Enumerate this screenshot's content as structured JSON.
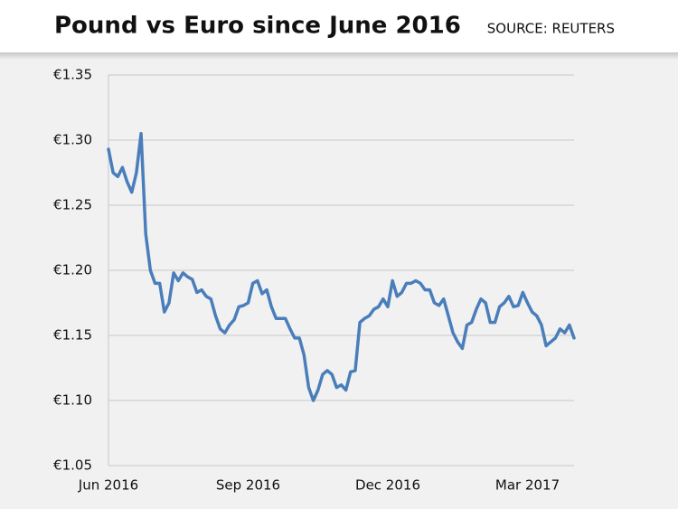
{
  "chart_data": {
    "type": "line",
    "title": "Pound vs Euro since June 2016",
    "source": "SOURCE: REUTERS",
    "categories": [
      "Jun 2016",
      null,
      null,
      null,
      null,
      null,
      null,
      null,
      null,
      null,
      null,
      null,
      null,
      null,
      null,
      null,
      null,
      null,
      null,
      null,
      null,
      null,
      null,
      null,
      null,
      null,
      null,
      null,
      null,
      null,
      "Sep 2016",
      null,
      null,
      null,
      null,
      null,
      null,
      null,
      null,
      null,
      null,
      null,
      null,
      null,
      null,
      null,
      null,
      null,
      null,
      null,
      null,
      null,
      null,
      null,
      null,
      null,
      null,
      null,
      null,
      null,
      "Dec 2016",
      null,
      null,
      null,
      null,
      null,
      null,
      null,
      null,
      null,
      null,
      null,
      null,
      null,
      null,
      null,
      null,
      null,
      null,
      null,
      null,
      null,
      null,
      null,
      null,
      null,
      null,
      null,
      null,
      null,
      "Mar 2017",
      null,
      null,
      null,
      null,
      null,
      null,
      null,
      null,
      null,
      null
    ],
    "values": [
      1.293,
      1.275,
      1.272,
      1.279,
      1.268,
      1.26,
      1.275,
      1.305,
      1.228,
      1.2,
      1.19,
      1.19,
      1.168,
      1.175,
      1.198,
      1.192,
      1.198,
      1.195,
      1.193,
      1.183,
      1.185,
      1.18,
      1.178,
      1.165,
      1.155,
      1.152,
      1.158,
      1.162,
      1.172,
      1.173,
      1.175,
      1.19,
      1.192,
      1.182,
      1.185,
      1.172,
      1.163,
      1.163,
      1.163,
      1.155,
      1.148,
      1.148,
      1.135,
      1.11,
      1.1,
      1.108,
      1.12,
      1.123,
      1.12,
      1.11,
      1.112,
      1.108,
      1.122,
      1.123,
      1.16,
      1.163,
      1.165,
      1.17,
      1.172,
      1.178,
      1.172,
      1.192,
      1.18,
      1.183,
      1.19,
      1.19,
      1.192,
      1.19,
      1.185,
      1.185,
      1.175,
      1.173,
      1.178,
      1.165,
      1.152,
      1.145,
      1.14,
      1.158,
      1.16,
      1.17,
      1.178,
      1.175,
      1.16,
      1.16,
      1.172,
      1.175,
      1.18,
      1.172,
      1.173,
      1.183,
      1.175,
      1.168,
      1.165,
      1.158,
      1.142,
      1.145,
      1.148,
      1.155,
      1.152,
      1.158,
      1.148
    ],
    "color": "#4a7ebb",
    "ylim": [
      1.05,
      1.35
    ],
    "yticks": [
      {
        "value": 1.05,
        "label": "€1.05"
      },
      {
        "value": 1.1,
        "label": "€1.10"
      },
      {
        "value": 1.15,
        "label": "€1.15"
      },
      {
        "value": 1.2,
        "label": "€1.20"
      },
      {
        "value": 1.25,
        "label": "€1.25"
      },
      {
        "value": 1.3,
        "label": "€1.30"
      },
      {
        "value": 1.35,
        "label": "€1.35"
      }
    ],
    "grid": true
  }
}
